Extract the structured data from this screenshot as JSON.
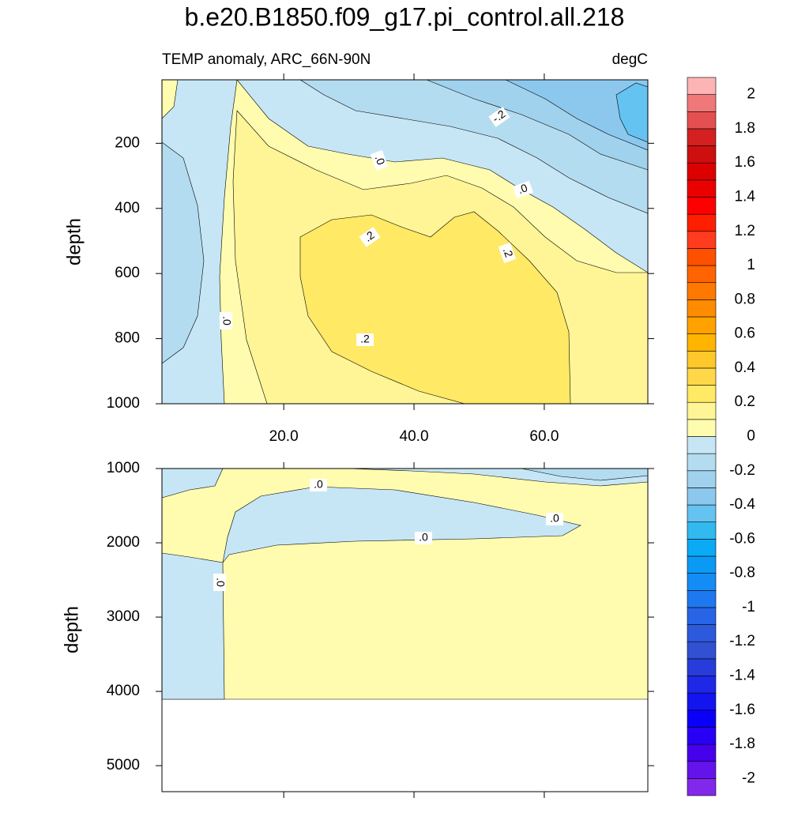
{
  "chart_data": [
    {
      "type": "contour",
      "title": "b.e20.B1850.f09_g17.pi_control.all.218",
      "subtitle_left": "TEMP anomaly, ARC_66N-90N",
      "subtitle_right": "degC",
      "y_label": "depth",
      "xlim": [
        1.3,
        75.9
      ],
      "xticks": [
        {
          "value": 20,
          "label": "20.0"
        },
        {
          "value": 40,
          "label": "40.0"
        },
        {
          "value": 60,
          "label": "60.0"
        }
      ],
      "ylim": [
        5,
        1000
      ],
      "yticks": [
        200,
        400,
        600,
        800,
        1000
      ],
      "contour_labels": [
        "-.2",
        ".0",
        ".0",
        ".2",
        ".2",
        ".0",
        ".2"
      ],
      "levels": [
        -2,
        -1.9,
        -1.8,
        -1.7,
        -1.6,
        -1.5,
        -1.4,
        -1.3,
        -1.2,
        -1.1,
        -1,
        -0.9,
        -0.8,
        -0.7,
        -0.6,
        -0.5,
        -0.4,
        -0.3,
        -0.2,
        -0.1,
        0,
        0.1,
        0.2,
        0.3,
        0.4,
        0.5,
        0.6,
        0.7,
        0.8,
        0.9,
        1,
        1.1,
        1.2,
        1.3,
        1.4,
        1.5,
        1.6,
        1.7,
        1.8,
        1.9,
        2
      ],
      "colors": [
        "#8228eb",
        "#6414eb",
        "#4600eb",
        "#2800f5",
        "#0a00fa",
        "#1414f0",
        "#1e28e6",
        "#283cdc",
        "#3250d2",
        "#2d5adc",
        "#2864e6",
        "#1e78f0",
        "#148cf5",
        "#0a9af5",
        "#0aaaf5",
        "#32b9f0",
        "#64c3f0",
        "#8cc8ee",
        "#a0d2ee",
        "#b4dcf0",
        "#c6e6f5",
        "#fffcb0",
        "#fff596",
        "#ffe965",
        "#ffd84a",
        "#ffc82a",
        "#ffb400",
        "#ffa200",
        "#ff8c00",
        "#ff7800",
        "#ff6400",
        "#ff5000",
        "#ff3c1e",
        "#ff1e00",
        "#ff0000",
        "#eb0000",
        "#dc0000",
        "#cd0f0f",
        "#d42020",
        "#e45050",
        "#f07878",
        "#fcb4b4"
      ],
      "colorbar_ticks": [
        2,
        1.8,
        1.6,
        1.4,
        1.2,
        1,
        0.8,
        0.6,
        0.4,
        0.2,
        0,
        -0.2,
        -0.4,
        -0.6,
        -0.8,
        -1,
        -1.2,
        -1.4,
        -1.6,
        -1.8,
        -2
      ]
    },
    {
      "type": "contour",
      "y_label": "depth",
      "xlim": [
        1.3,
        75.9
      ],
      "xticks": [
        20,
        40,
        60
      ],
      "ylim": [
        1000,
        5350
      ],
      "yticks": [
        1000,
        2000,
        3000,
        4000,
        5000
      ],
      "contour_labels": [
        ".0",
        ".0",
        ".0",
        ".0"
      ]
    }
  ]
}
